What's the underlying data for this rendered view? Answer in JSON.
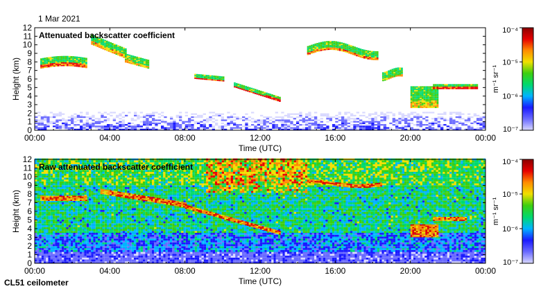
{
  "header": {
    "date": "1 Mar 2021"
  },
  "footer": {
    "instrument": "CL51 ceilometer"
  },
  "colorbar": {
    "unit_label": "m⁻¹ sr⁻¹",
    "ticks": [
      "10⁻⁴",
      "10⁻⁵",
      "10⁻⁶",
      "10⁻⁷"
    ]
  },
  "palette": {
    "stops": [
      "#d8d8ff",
      "#6a6aff",
      "#1a1aff",
      "#00b4ff",
      "#00d96e",
      "#3ccf10",
      "#f0e000",
      "#ff8c00",
      "#e60000",
      "#8b0000"
    ]
  },
  "chart_data": [
    {
      "type": "heatmap",
      "title": "Attenuated backscatter coefficient",
      "xlabel": "Time (UTC)",
      "ylabel": "Height (km)",
      "xlim": [
        0,
        24
      ],
      "ylim": [
        0,
        12
      ],
      "x_tick_labels": [
        "00:00",
        "04:00",
        "08:00",
        "12:00",
        "16:00",
        "20:00",
        "00:00"
      ],
      "y_tick_labels": [
        "0",
        "1",
        "2",
        "3",
        "4",
        "5",
        "6",
        "7",
        "8",
        "9",
        "10",
        "11",
        "12"
      ],
      "colorbar": {
        "scale": "log",
        "range": [
          1e-07,
          0.0001
        ]
      },
      "features": [
        {
          "name": "boundary-layer noise",
          "t_start": 0,
          "t_end": 24,
          "h_bottom": 0,
          "h_top": 2
        },
        {
          "name": "cirrus early",
          "t_start": 0.3,
          "t_end": 2.8,
          "h_bottom": 7.0,
          "h_top": 8.5
        },
        {
          "name": "descending cloud",
          "t_start": 3.2,
          "t_end": 6.0,
          "h_bottom": 7.0,
          "h_top": 11.5
        },
        {
          "name": "slanted cloud layer",
          "t_start": 8.5,
          "t_end": 13.0,
          "h_bottom": 3.3,
          "h_top": 6.3
        },
        {
          "name": "upper cloud",
          "t_start": 14.5,
          "t_end": 18.5,
          "h_bottom": 8.5,
          "h_top": 10.0
        },
        {
          "name": "mid cloud and precipitation",
          "t_start": 19.8,
          "t_end": 23.8,
          "h_bottom": 2.5,
          "h_top": 6.0
        }
      ]
    },
    {
      "type": "heatmap",
      "title": "Raw attenuated backscatter coefficient",
      "xlabel": "Time (UTC)",
      "ylabel": "Height (km)",
      "xlim": [
        0,
        24
      ],
      "ylim": [
        0,
        12
      ],
      "x_tick_labels": [
        "00:00",
        "04:00",
        "08:00",
        "12:00",
        "16:00",
        "20:00",
        "00:00"
      ],
      "y_tick_labels": [
        "0",
        "1",
        "2",
        "3",
        "4",
        "5",
        "6",
        "7",
        "8",
        "9",
        "10",
        "11",
        "12"
      ],
      "colorbar": {
        "scale": "log",
        "range": [
          1e-07,
          0.0001
        ]
      },
      "features": [
        {
          "name": "noise background",
          "t_start": 0,
          "t_end": 24,
          "h_bottom": 0,
          "h_top": 12
        },
        {
          "name": "descending cloud",
          "t_start": 3.5,
          "t_end": 13.0,
          "h_bottom": 3.3,
          "h_top": 8.0
        },
        {
          "name": "upper cloud",
          "t_start": 14.5,
          "t_end": 19.0,
          "h_bottom": 8.0,
          "h_top": 10.0
        },
        {
          "name": "mid cloud",
          "t_start": 19.8,
          "t_end": 23.0,
          "h_bottom": 2.7,
          "h_top": 6.0
        }
      ]
    }
  ]
}
